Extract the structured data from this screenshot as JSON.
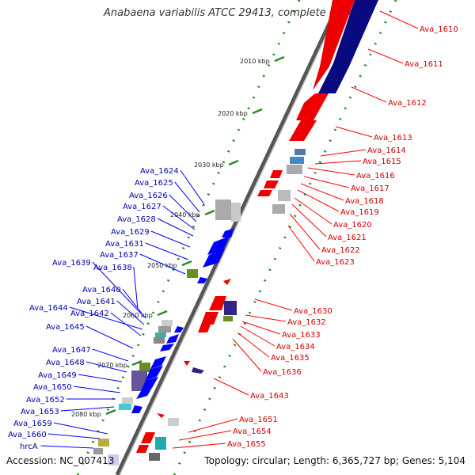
{
  "title": "Anabaena variabilis ATCC 29413, complete genome",
  "accession": "Accession: NC_007413",
  "summary": "Topology: circular; Length: 6,365,727 bp; Genes: 5,104",
  "colors": {
    "forward": "#ff0000",
    "reverse": "#0000ff",
    "forward_label": "#cc0000",
    "reverse_label": "#0000aa",
    "backbone": "#888888",
    "scale_dots": "#2a8a2a"
  },
  "scale_marks": [
    "2010 kbp",
    "2020 kbp",
    "2030 kbp",
    "2040 kbp",
    "2050 kbp",
    "2060 kbp",
    "2070 kbp",
    "2080 kbp"
  ],
  "forward_genes": [
    "Ava_1610",
    "Ava_1611",
    "Ava_1612",
    "Ava_1613",
    "Ava_1614",
    "Ava_1615",
    "Ava_1616",
    "Ava_1617",
    "Ava_1618",
    "Ava_1619",
    "Ava_1620",
    "Ava_1621",
    "Ava_1622",
    "Ava_1623",
    "Ava_1630",
    "Ava_1632",
    "Ava_1633",
    "Ava_1634",
    "Ava_1635",
    "Ava_1636",
    "Ava_1643",
    "Ava_1651",
    "Ava_1654",
    "Ava_1655"
  ],
  "reverse_genes": [
    "Ava_1624",
    "Ava_1625",
    "Ava_1626",
    "Ava_1627",
    "Ava_1628",
    "Ava_1629",
    "Ava_1631",
    "Ava_1637",
    "Ava_1639",
    "Ava_1638",
    "Ava_1640",
    "Ava_1641",
    "Ava_1644",
    "Ava_1642",
    "Ava_1645",
    "Ava_1647",
    "Ava_1648",
    "Ava_1649",
    "Ava_1650",
    "Ava_1652",
    "Ava_1653",
    "Ava_1659",
    "Ava_1660",
    "hrcA"
  ]
}
